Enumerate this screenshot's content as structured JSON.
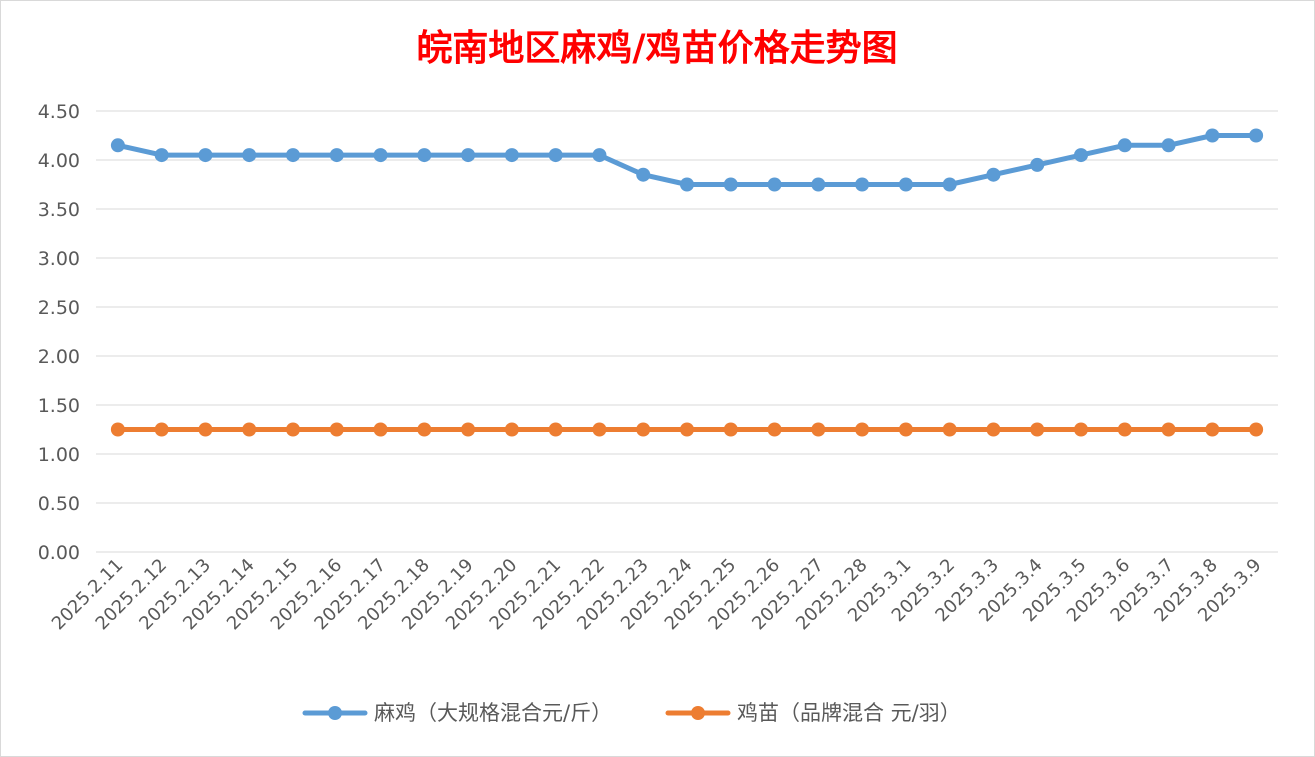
{
  "chart_data": {
    "type": "line",
    "title": "皖南地区麻鸡/鸡苗价格走势图",
    "categories": [
      "2025.2.11",
      "2025.2.12",
      "2025.2.13",
      "2025.2.14",
      "2025.2.15",
      "2025.2.16",
      "2025.2.17",
      "2025.2.18",
      "2025.2.19",
      "2025.2.20",
      "2025.2.21",
      "2025.2.22",
      "2025.2.23",
      "2025.2.24",
      "2025.2.25",
      "2025.2.26",
      "2025.2.27",
      "2025.2.28",
      "2025.3.1",
      "2025.3.2",
      "2025.3.3",
      "2025.3.4",
      "2025.3.5",
      "2025.3.6",
      "2025.3.7",
      "2025.3.8",
      "2025.3.9"
    ],
    "series": [
      {
        "name": "麻鸡（大规格混合元/斤）",
        "color": "#5b9bd5",
        "values": [
          4.15,
          4.05,
          4.05,
          4.05,
          4.05,
          4.05,
          4.05,
          4.05,
          4.05,
          4.05,
          4.05,
          4.05,
          3.85,
          3.75,
          3.75,
          3.75,
          3.75,
          3.75,
          3.75,
          3.75,
          3.85,
          3.95,
          4.05,
          4.15,
          4.15,
          4.25,
          4.25
        ]
      },
      {
        "name": "鸡苗（品牌混合 元/羽）",
        "color": "#ed7d31",
        "values": [
          1.25,
          1.25,
          1.25,
          1.25,
          1.25,
          1.25,
          1.25,
          1.25,
          1.25,
          1.25,
          1.25,
          1.25,
          1.25,
          1.25,
          1.25,
          1.25,
          1.25,
          1.25,
          1.25,
          1.25,
          1.25,
          1.25,
          1.25,
          1.25,
          1.25,
          1.25,
          1.25
        ]
      }
    ],
    "yticks": [
      "0.00",
      "0.50",
      "1.00",
      "1.50",
      "2.00",
      "2.50",
      "3.00",
      "3.50",
      "4.00",
      "4.50"
    ],
    "ylim": [
      0,
      4.5
    ],
    "grid": true,
    "legend_position": "bottom",
    "title_color": "#ff0000"
  }
}
